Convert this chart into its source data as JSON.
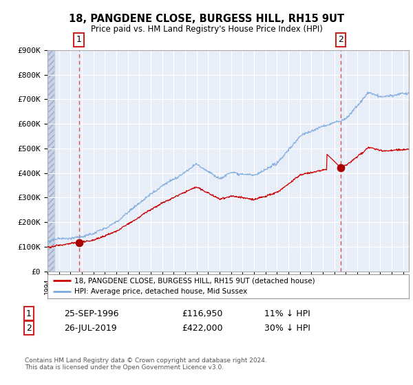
{
  "title": "18, PANGDENE CLOSE, BURGESS HILL, RH15 9UT",
  "subtitle": "Price paid vs. HM Land Registry's House Price Index (HPI)",
  "legend_line1": "18, PANGDENE CLOSE, BURGESS HILL, RH15 9UT (detached house)",
  "legend_line2": "HPI: Average price, detached house, Mid Sussex",
  "transaction1_date": "25-SEP-1996",
  "transaction1_price": "£116,950",
  "transaction1_hpi": "11% ↓ HPI",
  "transaction2_date": "26-JUL-2019",
  "transaction2_price": "£422,000",
  "transaction2_hpi": "30% ↓ HPI",
  "footer": "Contains HM Land Registry data © Crown copyright and database right 2024.\nThis data is licensed under the Open Government Licence v3.0.",
  "sale1_year": 1996.73,
  "sale1_price": 116950,
  "sale2_year": 2019.56,
  "sale2_price": 422000,
  "hpi_line_color": "#7aaadd",
  "price_line_color": "#cc0000",
  "sale_marker_color": "#aa0000",
  "vline_color": "#dd3333",
  "chart_bg_color": "#e8eef8",
  "ylim": [
    0,
    900000
  ],
  "xlim_start": 1994.0,
  "xlim_end": 2025.5
}
